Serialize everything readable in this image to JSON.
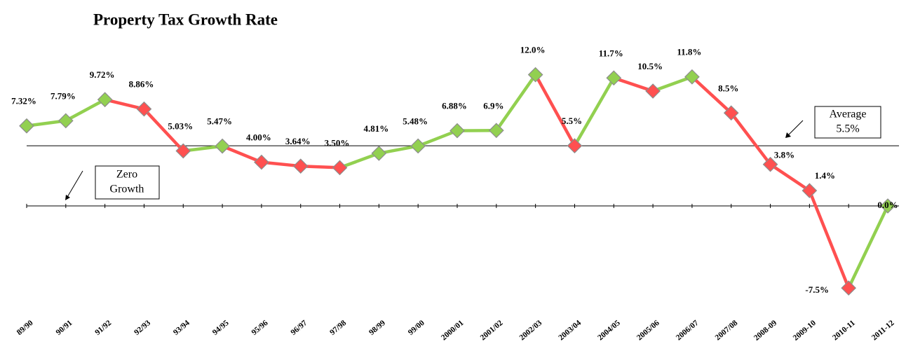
{
  "chart_data": {
    "type": "line",
    "title": "Property Tax Growth Rate",
    "categories": [
      "89/90",
      "90/91",
      "91/92",
      "92/93",
      "93/94",
      "94/95",
      "95/96",
      "96/97",
      "97/98",
      "98/99",
      "99/00",
      "2000/01",
      "2001/02",
      "2002/03",
      "2003/04",
      "2004/05",
      "2005/06",
      "2006/07",
      "2007/08",
      "2008-09",
      "2009-10",
      "2010-11",
      "2011-12"
    ],
    "values": [
      7.32,
      7.79,
      9.72,
      8.86,
      5.03,
      5.47,
      4.0,
      3.64,
      3.5,
      4.81,
      5.48,
      6.88,
      6.9,
      12.0,
      5.5,
      11.7,
      10.5,
      11.8,
      8.5,
      3.8,
      1.4,
      -7.5,
      0.0
    ],
    "value_labels": [
      "7.32%",
      "7.79%",
      "9.72%",
      "8.86%",
      "5.03%",
      "5.47%",
      "4.00%",
      "3.64%",
      "3.50%",
      "4.81%",
      "5.48%",
      "6.88%",
      "6.9%",
      "12.0%",
      "5.5%",
      "11.7%",
      "10.5%",
      "11.8%",
      "8.5%",
      "3.8%",
      "1.4%",
      "-7.5%",
      "0.0%"
    ],
    "up_color": "#92d050",
    "down_color": "#ff5050",
    "ylim": [
      -8,
      13
    ],
    "average": {
      "label": "Average",
      "value": 5.5,
      "value_label": "5.5%"
    },
    "zero": {
      "value": 0,
      "label_lines": [
        "Zero",
        "Growth"
      ]
    }
  }
}
